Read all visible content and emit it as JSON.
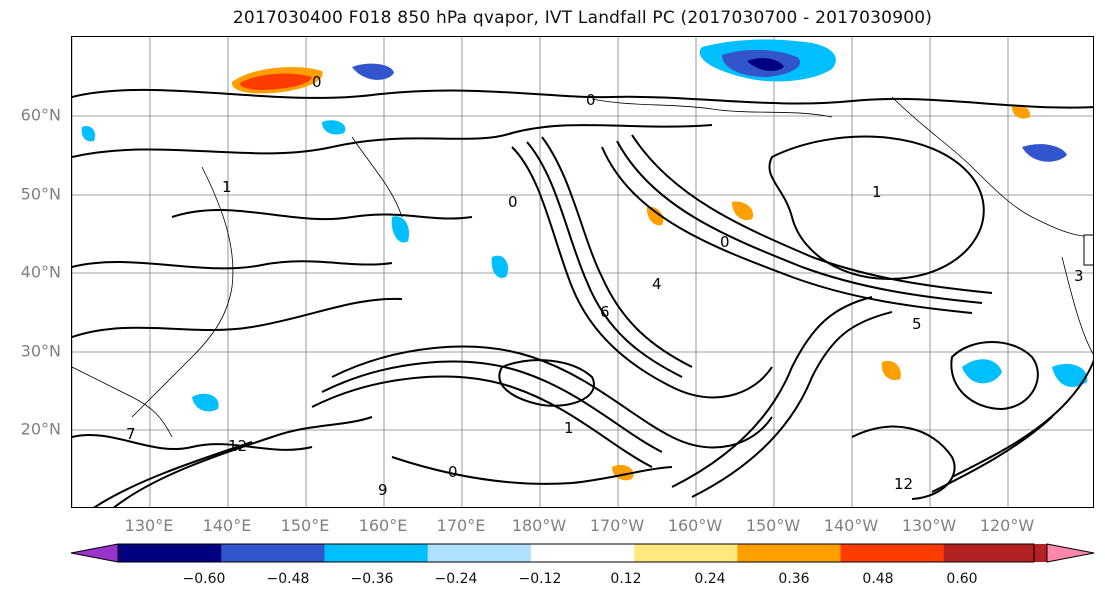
{
  "title": "2017030400 F018 850 hPa qvapor, IVT Landfall PC (2017030700 - 2017030900)",
  "latitude_labels": [
    "60°N",
    "50°N",
    "40°N",
    "30°N",
    "20°N"
  ],
  "longitude_labels": [
    "130°E",
    "140°E",
    "150°E",
    "160°E",
    "170°E",
    "180°W",
    "170°W",
    "160°W",
    "150°W",
    "140°W",
    "130°W",
    "120°W"
  ],
  "colorbar": {
    "tick_labels": [
      "−0.60",
      "−0.48",
      "−0.36",
      "−0.24",
      "−0.12",
      "0.12",
      "0.24",
      "0.36",
      "0.48",
      "0.60"
    ],
    "colors": [
      "#9933cc",
      "#000080",
      "#3355cc",
      "#00bfff",
      "#b0e0ff",
      "#ffffff",
      "#ffe97f",
      "#ff9f00",
      "#ff3c00",
      "#b22222",
      "#ff88aa"
    ]
  },
  "contour_labels": [
    "0",
    "0",
    "0",
    "0",
    "0",
    "1",
    "1",
    "1",
    "4",
    "5",
    "6",
    "7",
    "9",
    "12",
    "12",
    "3"
  ],
  "colors": {
    "contour": "#000000",
    "grid": "#808080",
    "coastline": "#000000"
  }
}
